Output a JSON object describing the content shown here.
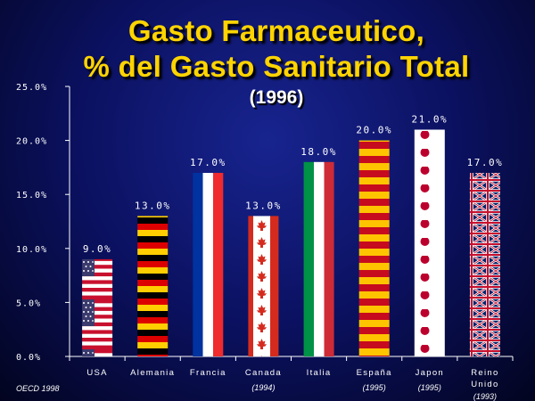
{
  "chart_data": {
    "type": "bar",
    "title": "Gasto Farmaceutico,",
    "title_line2": "% del Gasto Sanitario Total",
    "subtitle": "(1996)",
    "source": "OECD 1998",
    "categories": [
      "USA",
      "Alemania",
      "Francia",
      "Canada",
      "Italia",
      "España",
      "Japon",
      "Reino Unido"
    ],
    "category_display": [
      [
        "USA"
      ],
      [
        "Alemania"
      ],
      [
        "Francia"
      ],
      [
        "Canada"
      ],
      [
        "Italia"
      ],
      [
        "España"
      ],
      [
        "Japon"
      ],
      [
        "Reino",
        "Unido"
      ]
    ],
    "category_notes": [
      "",
      "",
      "",
      "(1994)",
      "",
      "(1995)",
      "(1995)",
      "(1993)"
    ],
    "values": [
      9.0,
      13.0,
      17.0,
      13.0,
      18.0,
      20.0,
      21.0,
      17.0
    ],
    "value_labels": [
      "9.0%",
      "13.0%",
      "17.0%",
      "13.0%",
      "18.0%",
      "20.0%",
      "21.0%",
      "17.0%"
    ],
    "bar_fills": [
      "flag-usa",
      "flag-germany",
      "flag-france",
      "flag-canada",
      "flag-italy",
      "flag-spain",
      "flag-japan",
      "flag-uk"
    ],
    "ylim": [
      0,
      25
    ],
    "yticks": [
      0,
      5,
      10,
      15,
      20,
      25
    ],
    "ytick_labels": [
      "0.0%",
      "5.0%",
      "10.0%",
      "15.0%",
      "20.0%",
      "25.0%"
    ],
    "grid": false,
    "legend": "none",
    "colors": {
      "title": "#ffd400",
      "axis": "#ffffff",
      "usa_red": "#c8102e",
      "usa_blue": "#3c3b6e",
      "germany_gold": "#ffce00",
      "germany_red": "#dd0000",
      "germany_black": "#000000",
      "france_blue": "#0032a0",
      "france_red": "#ef2b2d",
      "canada_red": "#d52b1e",
      "italy_green": "#009246",
      "italy_red": "#ce2b37",
      "spain_red": "#c60b1e",
      "spain_yellow": "#ffc400",
      "japan_red": "#bc002d",
      "uk_blue": "#012169",
      "uk_red": "#c8102e"
    }
  }
}
